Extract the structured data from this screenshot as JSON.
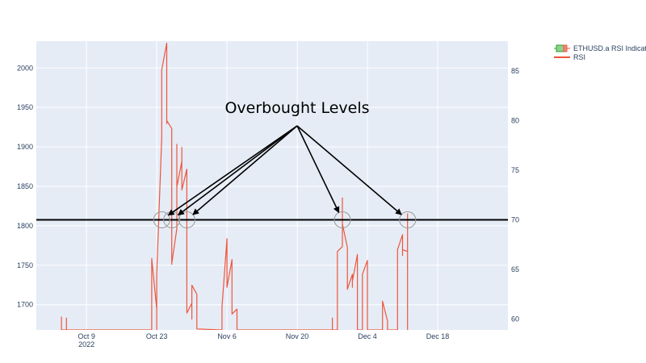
{
  "chart_data": {
    "type": "line",
    "title": "",
    "xlabel": "",
    "ylabel_left": "",
    "ylabel_right": "",
    "x_ticks": [
      {
        "label": "Oct 9",
        "sub": "2022",
        "date": "2022-10-09"
      },
      {
        "label": "Oct 23",
        "sub": "",
        "date": "2022-10-23"
      },
      {
        "label": "Nov 6",
        "sub": "",
        "date": "2022-11-06"
      },
      {
        "label": "Nov 20",
        "sub": "",
        "date": "2022-11-20"
      },
      {
        "label": "Dec 4",
        "sub": "",
        "date": "2022-12-04"
      },
      {
        "label": "Dec 18",
        "sub": "",
        "date": "2022-12-18"
      }
    ],
    "xlim": [
      "2022-09-29",
      "2023-01-01"
    ],
    "y_left_ticks": [
      "1700",
      "1750",
      "1800",
      "1850",
      "1900",
      "1950",
      "2000"
    ],
    "y_left_lim": [
      1668,
      2034
    ],
    "y_right_ticks": [
      "60",
      "65",
      "70",
      "75",
      "80",
      "85"
    ],
    "y_right_lim": [
      58.9,
      88
    ],
    "grid": true,
    "legend_position": "top-right",
    "legend": [
      {
        "name": "ETHUSD.a RSI Indicator",
        "kind": "candlestick"
      },
      {
        "name": "RSI",
        "kind": "line"
      }
    ],
    "threshold": {
      "value": 70,
      "axis": "right",
      "color": "#000000"
    },
    "annotation": {
      "text": "Overbought Levels"
    },
    "overbought_points": [
      {
        "date": "2022-10-24",
        "value": 70
      },
      {
        "date": "2022-10-26",
        "value": 70
      },
      {
        "date": "2022-10-29",
        "value": 70
      },
      {
        "date": "2022-11-29",
        "value": 70
      },
      {
        "date": "2022-12-12",
        "value": 70
      }
    ],
    "series": [
      {
        "name": "RSI",
        "color": "#ef553b",
        "axis": "right",
        "points": [
          [
            "2022-10-04",
            58.9
          ],
          [
            "2022-10-04",
            59.2
          ],
          [
            "2022-10-04",
            60.2
          ],
          [
            "2022-10-04",
            58.9
          ],
          [
            "2022-10-05",
            58.9
          ],
          [
            "2022-10-05",
            60.1
          ],
          [
            "2022-10-05",
            58.9
          ],
          [
            "2022-10-22",
            58.9
          ],
          [
            "2022-10-22",
            61.5
          ],
          [
            "2022-10-22",
            66.1
          ],
          [
            "2022-10-23",
            61.0
          ],
          [
            "2022-10-23",
            64.1
          ],
          [
            "2022-10-23",
            60.0
          ],
          [
            "2022-10-23",
            62.5
          ],
          [
            "2022-10-23",
            58.9
          ],
          [
            "2022-10-23",
            64.5
          ],
          [
            "2022-10-24",
            78.3
          ],
          [
            "2022-10-24",
            81.0
          ],
          [
            "2022-10-24",
            85.1
          ],
          [
            "2022-10-25",
            87.8
          ],
          [
            "2022-10-25",
            81.8
          ],
          [
            "2022-10-25",
            79.7
          ],
          [
            "2022-10-25",
            80.0
          ],
          [
            "2022-10-26",
            79.2
          ],
          [
            "2022-10-26",
            72.8
          ],
          [
            "2022-10-26",
            65.5
          ],
          [
            "2022-10-26",
            65.6
          ],
          [
            "2022-10-27",
            69.1
          ],
          [
            "2022-10-27",
            72.0
          ],
          [
            "2022-10-27",
            77.6
          ],
          [
            "2022-10-27",
            73.3
          ],
          [
            "2022-10-28",
            75.9
          ],
          [
            "2022-10-28",
            77.3
          ],
          [
            "2022-10-28",
            76.3
          ],
          [
            "2022-10-28",
            73.0
          ],
          [
            "2022-10-29",
            75.1
          ],
          [
            "2022-10-29",
            67.2
          ],
          [
            "2022-10-29",
            60.6
          ],
          [
            "2022-10-30",
            61.6
          ],
          [
            "2022-10-30",
            60.0
          ],
          [
            "2022-10-30",
            63.4
          ],
          [
            "2022-10-31",
            62.5
          ],
          [
            "2022-10-31",
            60.0
          ],
          [
            "2022-10-31",
            59.0
          ],
          [
            "2022-11-05",
            58.9
          ],
          [
            "2022-11-05",
            61.2
          ],
          [
            "2022-11-06",
            68.1
          ],
          [
            "2022-11-06",
            65.5
          ],
          [
            "2022-11-06",
            66.2
          ],
          [
            "2022-11-06",
            63.2
          ],
          [
            "2022-11-07",
            66.0
          ],
          [
            "2022-11-07",
            62.5
          ],
          [
            "2022-11-07",
            60.5
          ],
          [
            "2022-11-08",
            61.0
          ],
          [
            "2022-11-08",
            60.0
          ],
          [
            "2022-11-08",
            58.9
          ],
          [
            "2022-11-27",
            58.9
          ],
          [
            "2022-11-27",
            60.1
          ],
          [
            "2022-11-27",
            58.9
          ],
          [
            "2022-11-28",
            58.9
          ],
          [
            "2022-11-28",
            64.0
          ],
          [
            "2022-11-28",
            66.8
          ],
          [
            "2022-11-29",
            67.3
          ],
          [
            "2022-11-29",
            72.2
          ],
          [
            "2022-11-29",
            69.6
          ],
          [
            "2022-11-30",
            67.2
          ],
          [
            "2022-11-30",
            64.5
          ],
          [
            "2022-11-30",
            63.0
          ],
          [
            "2022-12-01",
            64.5
          ],
          [
            "2022-12-01",
            63.2
          ],
          [
            "2022-12-01",
            63.8
          ],
          [
            "2022-12-02",
            66.5
          ],
          [
            "2022-12-02",
            63.2
          ],
          [
            "2022-12-02",
            58.9
          ],
          [
            "2022-12-03",
            58.9
          ],
          [
            "2022-12-03",
            64.5
          ],
          [
            "2022-12-04",
            65.9
          ],
          [
            "2022-12-04",
            61.0
          ],
          [
            "2022-12-04",
            58.9
          ],
          [
            "2022-12-07",
            58.9
          ],
          [
            "2022-12-07",
            61.5
          ],
          [
            "2022-12-07",
            61.8
          ],
          [
            "2022-12-08",
            59.8
          ],
          [
            "2022-12-08",
            58.9
          ],
          [
            "2022-12-10",
            58.9
          ],
          [
            "2022-12-10",
            67.0
          ],
          [
            "2022-12-11",
            68.5
          ],
          [
            "2022-12-11",
            66.4
          ],
          [
            "2022-12-11",
            67.0
          ],
          [
            "2022-12-12",
            66.8
          ],
          [
            "2022-12-12",
            70.6
          ],
          [
            "2022-12-12",
            62.0
          ],
          [
            "2022-12-12",
            58.9
          ]
        ]
      }
    ]
  }
}
